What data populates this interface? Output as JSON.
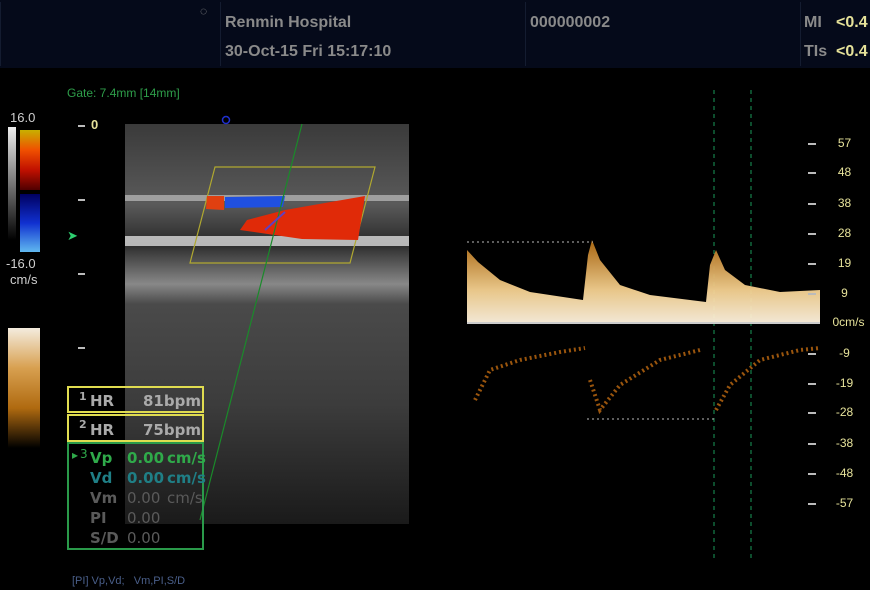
{
  "header": {
    "hospital": "Renmin Hospital",
    "datetime": "30-Oct-15 Fri 15:17:10",
    "patient_id": "000000002",
    "mi_label": "MI",
    "mi_value": "<0.4",
    "tis_label": "TIs",
    "tis_value": "<0.4"
  },
  "gate": "Gate: 7.4mm [14mm]",
  "color_scale": {
    "max": "16.0",
    "min": "-16.0",
    "unit": "cm/s"
  },
  "depth_marker": "0",
  "measurements": [
    {
      "index": "1",
      "label": "HR",
      "value": "81",
      "unit": "bpm"
    },
    {
      "index": "2",
      "label": "HR",
      "value": "75",
      "unit": "bpm"
    }
  ],
  "doppler_calcs": {
    "index": "3",
    "rows": [
      {
        "label": "Vp",
        "value": "0.00",
        "unit": "cm/s",
        "color": "#2faa4a"
      },
      {
        "label": "Vd",
        "value": "0.00",
        "unit": "cm/s",
        "color": "#1f7f86"
      },
      {
        "label": "Vm",
        "value": "0.00",
        "unit": "cm/s",
        "color": "#5a5a5a"
      },
      {
        "label": "PI",
        "value": "0.00",
        "unit": "",
        "color": "#5a5a5a"
      },
      {
        "label": "S/D",
        "value": "0.00",
        "unit": "",
        "color": "#5a5a5a"
      }
    ]
  },
  "footer": "[PI] Vp,Vd;   Vm,PI,S/D",
  "velocity_scale": {
    "ticks": [
      "57",
      "48",
      "38",
      "28",
      "19",
      "9",
      "0cm/s",
      "-9",
      "-19",
      "-28",
      "-38",
      "-48",
      "-57"
    ]
  }
}
